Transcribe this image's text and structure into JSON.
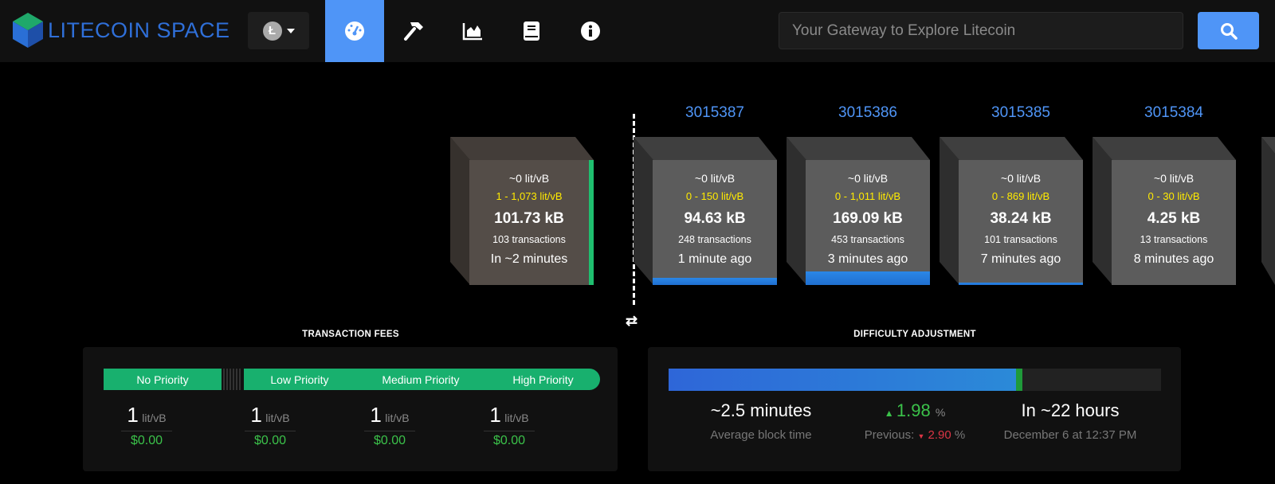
{
  "header": {
    "logo_text": "LITECOIN SPACE",
    "coin_symbol": "Ł",
    "nav": [
      "dashboard-icon",
      "mining-icon",
      "graphs-icon",
      "docs-icon",
      "about-icon"
    ],
    "active_nav": 0,
    "search_placeholder": "Your Gateway to Explore Litecoin",
    "accent": "#4f95f7"
  },
  "pending_block": {
    "median_fee": "~0 lit/vB",
    "fee_range": "1 - 1,073 lit/vB",
    "size": "101.73 kB",
    "tx_count": "103 transactions",
    "eta": "In ~2 minutes"
  },
  "blocks": [
    {
      "height": "3015387",
      "median_fee": "~0 lit/vB",
      "fee_range": "0 - 150 lit/vB",
      "size": "94.63 kB",
      "tx_count": "248 transactions",
      "time": "1 minute ago",
      "fill_pct": 6
    },
    {
      "height": "3015386",
      "median_fee": "~0 lit/vB",
      "fee_range": "0 - 1,011 lit/vB",
      "size": "169.09 kB",
      "tx_count": "453 transactions",
      "time": "3 minutes ago",
      "fill_pct": 11
    },
    {
      "height": "3015385",
      "median_fee": "~0 lit/vB",
      "fee_range": "0 - 869 lit/vB",
      "size": "38.24 kB",
      "tx_count": "101 transactions",
      "time": "7 minutes ago",
      "fill_pct": 2
    },
    {
      "height": "3015384",
      "median_fee": "~0 lit/vB",
      "fee_range": "0 - 30 lit/vB",
      "size": "4.25 kB",
      "tx_count": "13 transactions",
      "time": "8 minutes ago",
      "fill_pct": 0
    }
  ],
  "fees": {
    "title": "TRANSACTION FEES",
    "no_priority": "No Priority",
    "low": "Low Priority",
    "medium": "Medium Priority",
    "high": "High Priority",
    "values": [
      {
        "rate": "1",
        "unit": "lit/vB",
        "usd": "$0.00"
      },
      {
        "rate": "1",
        "unit": "lit/vB",
        "usd": "$0.00"
      },
      {
        "rate": "1",
        "unit": "lit/vB",
        "usd": "$0.00"
      },
      {
        "rate": "1",
        "unit": "lit/vB",
        "usd": "$0.00"
      }
    ]
  },
  "difficulty": {
    "title": "DIFFICULTY ADJUSTMENT",
    "progress_pct": 71,
    "avg_block_time": "~2.5 minutes",
    "avg_label": "Average block time",
    "change": "1.98",
    "change_unit": "%",
    "previous_label": "Previous:",
    "previous": "2.90",
    "previous_unit": "%",
    "eta": "In ~22 hours",
    "eta_date": "December 6 at 12:37 PM"
  }
}
